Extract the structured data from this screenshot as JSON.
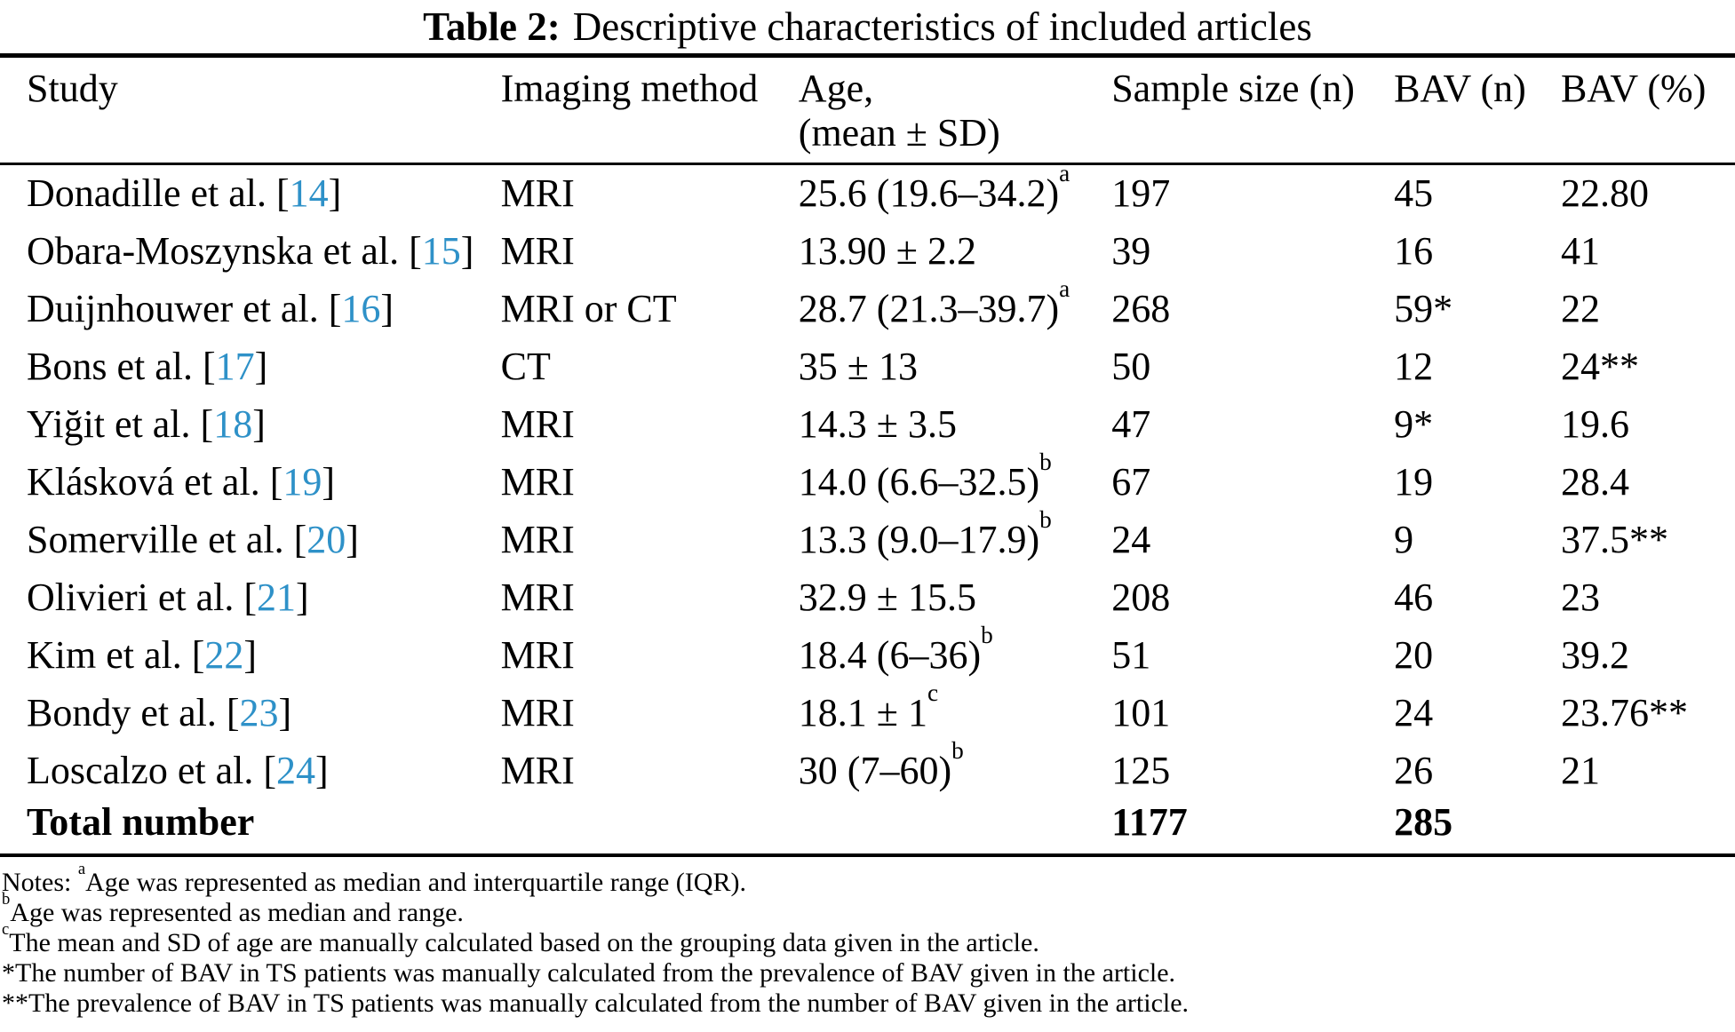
{
  "title": {
    "label": "Table 2:",
    "text": "Descriptive characteristics of included articles"
  },
  "colors": {
    "citation_blue": "#2e91c8",
    "text": "#000000",
    "background": "#ffffff"
  },
  "table": {
    "citation_open": "[",
    "citation_close": "]",
    "header": {
      "study": "Study",
      "imaging": "Imaging method",
      "age_line1": "Age,",
      "age_line2": "(mean ± SD)",
      "sample": "Sample size (n)",
      "bav_n": "BAV (n)",
      "bav_pct": "BAV (%)"
    },
    "rows": [
      {
        "study": "Donadille et al.",
        "ref": "14",
        "imaging": "MRI",
        "age": "25.6 (19.6–34.2)",
        "age_sup": "a",
        "sample": "197",
        "bav_n": "45",
        "bav_pct": "22.80"
      },
      {
        "study": "Obara-Moszynska et al.",
        "ref": "15",
        "imaging": "MRI",
        "age": "13.90 ± 2.2",
        "age_sup": "",
        "sample": "39",
        "bav_n": "16",
        "bav_pct": "41"
      },
      {
        "study": "Duijnhouwer et al.",
        "ref": "16",
        "imaging": "MRI or CT",
        "age": "28.7 (21.3–39.7)",
        "age_sup": "a",
        "sample": "268",
        "bav_n": "59*",
        "bav_pct": "22"
      },
      {
        "study": "Bons et al.",
        "ref": "17",
        "imaging": "CT",
        "age": "35 ± 13",
        "age_sup": "",
        "sample": "50",
        "bav_n": "12",
        "bav_pct": "24**"
      },
      {
        "study": "Yiğit et al.",
        "ref": "18",
        "imaging": "MRI",
        "age": "14.3 ± 3.5",
        "age_sup": "",
        "sample": "47",
        "bav_n": "9*",
        "bav_pct": "19.6"
      },
      {
        "study": "Klásková et al.",
        "ref": "19",
        "imaging": "MRI",
        "age": "14.0 (6.6–32.5)",
        "age_sup": "b",
        "sample": "67",
        "bav_n": "19",
        "bav_pct": "28.4"
      },
      {
        "study": "Somerville et al.",
        "ref": "20",
        "imaging": "MRI",
        "age": "13.3 (9.0–17.9)",
        "age_sup": "b",
        "sample": "24",
        "bav_n": "9",
        "bav_pct": "37.5**"
      },
      {
        "study": "Olivieri et al.",
        "ref": "21",
        "imaging": "MRI",
        "age": "32.9 ± 15.5",
        "age_sup": "",
        "sample": "208",
        "bav_n": "46",
        "bav_pct": "23"
      },
      {
        "study": "Kim et al.",
        "ref": "22",
        "imaging": "MRI",
        "age": "18.4 (6–36)",
        "age_sup": "b",
        "sample": "51",
        "bav_n": "20",
        "bav_pct": "39.2"
      },
      {
        "study": "Bondy et al.",
        "ref": "23",
        "imaging": "MRI",
        "age": "18.1 ± 1",
        "age_sup": "c",
        "sample": "101",
        "bav_n": "24",
        "bav_pct": "23.76**"
      },
      {
        "study": "Loscalzo et al.",
        "ref": "24",
        "imaging": "MRI",
        "age": "30 (7–60)",
        "age_sup": "b",
        "sample": "125",
        "bav_n": "26",
        "bav_pct": "21"
      }
    ],
    "total_row": {
      "label": "Total number",
      "sample": "1177",
      "bav_n": "285"
    }
  },
  "notes": [
    {
      "lead": "Notes: ",
      "sup": "a",
      "text": "Age was represented as median and interquartile range (IQR)."
    },
    {
      "lead": "",
      "sup": "b",
      "text": "Age was represented as median and range."
    },
    {
      "lead": "",
      "sup": "c",
      "text": "The mean and SD of age are manually calculated based on the grouping data given in the article."
    },
    {
      "lead": "",
      "sup": "",
      "text": "*The number of BAV in TS patients was manually calculated from the prevalence of BAV given in the article."
    },
    {
      "lead": "",
      "sup": "",
      "text": "**The prevalence of BAV in TS patients was manually calculated from the number of BAV given in the article."
    }
  ]
}
